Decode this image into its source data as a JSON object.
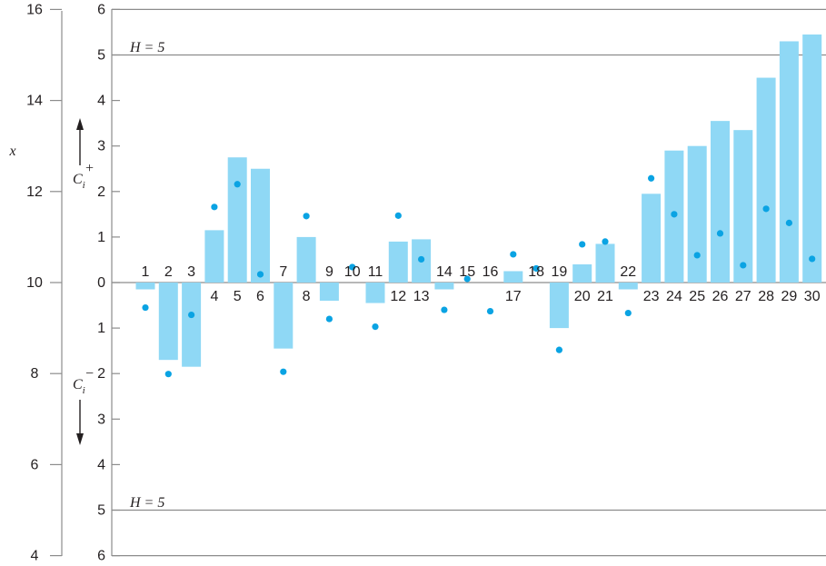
{
  "chart_data": {
    "type": "bar",
    "title": "",
    "left_axis": {
      "label": "x",
      "ticks": [
        4,
        6,
        8,
        10,
        12,
        14,
        16
      ],
      "range": [
        4,
        16
      ]
    },
    "cusum_axis": {
      "ticks": [
        "6",
        "5",
        "4",
        "3",
        "2",
        "1",
        "0",
        "1",
        "2",
        "3",
        "4",
        "5",
        "6"
      ],
      "upper_label": "C",
      "upper_sub": "i",
      "upper_sup": "+",
      "lower_label": "C",
      "lower_sub": "i",
      "lower_sup": "−",
      "range": [
        -6,
        6
      ]
    },
    "limits": {
      "upper_text": "H = 5",
      "lower_text": "H = 5",
      "value": 5
    },
    "samples": [
      "1",
      "2",
      "3",
      "4",
      "5",
      "6",
      "7",
      "8",
      "9",
      "10",
      "11",
      "12",
      "13",
      "14",
      "15",
      "16",
      "17",
      "18",
      "19",
      "20",
      "21",
      "22",
      "23",
      "24",
      "25",
      "26",
      "27",
      "28",
      "29",
      "30"
    ],
    "cusum": [
      -0.15,
      -1.7,
      -1.85,
      1.15,
      2.75,
      2.5,
      -1.45,
      1.0,
      -0.4,
      0.0,
      -0.45,
      0.9,
      0.95,
      -0.15,
      0.0,
      0.0,
      0.25,
      0.0,
      -1.0,
      0.4,
      0.85,
      -0.15,
      1.95,
      2.9,
      3.0,
      3.55,
      3.35,
      4.5,
      5.3,
      5.45
    ],
    "x_values": [
      9.45,
      7.99,
      9.29,
      11.66,
      12.16,
      10.18,
      8.04,
      11.46,
      9.2,
      10.34,
      9.03,
      11.47,
      10.51,
      9.4,
      10.08,
      9.37,
      10.62,
      10.31,
      8.52,
      10.84,
      10.9,
      9.33,
      12.29,
      11.5,
      10.6,
      11.08,
      10.38,
      11.62,
      11.31,
      10.52
    ],
    "colors": {
      "bar": "#8fd8f5",
      "point": "#0aa3e3",
      "gridline": "#8c8c8c",
      "text": "#231f20"
    }
  }
}
